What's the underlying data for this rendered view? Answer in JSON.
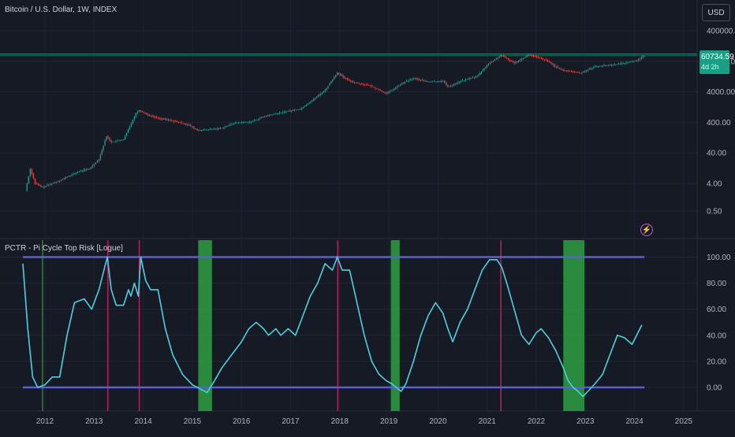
{
  "top_panel": {
    "title": "Bitcoin / U.S. Dollar, 1W, INDEX",
    "currency_button": "USD",
    "last_price": "60734.59",
    "countdown": "4d 2h",
    "y_ticks": [
      "400000.00",
      "40000.00",
      "4000.00",
      "400.00",
      "40.00",
      "4.00",
      "0.50"
    ]
  },
  "bottom_panel": {
    "title": "PCTR - Pi Cycle Top Risk [Logue]",
    "y_ticks": [
      "100.00",
      "80.00",
      "60.00",
      "40.00",
      "20.00",
      "0.00"
    ],
    "alert_icon": "lightning-bolt-icon"
  },
  "x_axis": {
    "labels": [
      "2012",
      "2013",
      "2014",
      "2015",
      "2016",
      "2017",
      "2018",
      "2019",
      "2020",
      "2021",
      "2022",
      "2023",
      "2024",
      "2025"
    ]
  },
  "colors": {
    "background": "#161a25",
    "price_up": "#26a69a",
    "price_down": "#ef5350",
    "risk_line": "#4dd0e1",
    "band_line": "#5a5fd8",
    "top_marker": "#b0205a",
    "bottom_zone": "#2ea043",
    "price_tag": "#16a085"
  },
  "chart_data": [
    {
      "type": "line",
      "title": "Bitcoin / U.S. Dollar, 1W, INDEX",
      "scale": "log",
      "ylim": [
        0.5,
        400000
      ],
      "y_ticks": [
        400000,
        40000,
        4000,
        400,
        40,
        4,
        0.5
      ],
      "x": [
        2011.6,
        2011.7,
        2011.8,
        2011.95,
        2012.3,
        2012.7,
        2012.9,
        2013.1,
        2013.25,
        2013.35,
        2013.6,
        2013.85,
        2013.92,
        2014.1,
        2014.3,
        2014.6,
        2014.9,
        2015.1,
        2015.3,
        2015.6,
        2015.85,
        2016.2,
        2016.5,
        2016.9,
        2017.2,
        2017.5,
        2017.7,
        2017.95,
        2018.1,
        2018.3,
        2018.6,
        2018.95,
        2019.3,
        2019.5,
        2019.8,
        2020.1,
        2020.2,
        2020.5,
        2020.8,
        2021.0,
        2021.28,
        2021.55,
        2021.85,
        2022.2,
        2022.5,
        2022.9,
        2023.2,
        2023.5,
        2023.8,
        2024.05,
        2024.2
      ],
      "values": [
        2.3,
        12,
        4,
        3,
        5,
        10,
        12,
        25,
        140,
        90,
        110,
        800,
        1000,
        700,
        550,
        450,
        340,
        220,
        230,
        260,
        380,
        420,
        650,
        900,
        1100,
        2500,
        4500,
        17000,
        11000,
        8000,
        6500,
        3500,
        8000,
        11000,
        8500,
        9000,
        5800,
        9300,
        13000,
        30000,
        63000,
        35000,
        65000,
        43000,
        21000,
        16500,
        27000,
        30000,
        35000,
        43000,
        60734
      ]
    },
    {
      "type": "line",
      "title": "PCTR - Pi Cycle Top Risk [Logue]",
      "ylim": [
        -10,
        105
      ],
      "y_ticks": [
        100,
        80,
        60,
        40,
        20,
        0
      ],
      "reference_lines": [
        100,
        0
      ],
      "top_markers_x": [
        2011.95,
        2013.28,
        2013.92,
        2017.96,
        2021.28
      ],
      "bottom_zones_x": [
        [
          2015.12,
          2015.4
        ],
        [
          2019.04,
          2019.22
        ],
        [
          2022.55,
          2022.98
        ]
      ],
      "x": [
        2011.55,
        2011.65,
        2011.75,
        2011.85,
        2012.0,
        2012.15,
        2012.3,
        2012.45,
        2012.6,
        2012.8,
        2012.95,
        2013.1,
        2013.2,
        2013.27,
        2013.35,
        2013.45,
        2013.6,
        2013.7,
        2013.75,
        2013.82,
        2013.9,
        2013.95,
        2014.05,
        2014.15,
        2014.3,
        2014.45,
        2014.6,
        2014.8,
        2015.0,
        2015.2,
        2015.3,
        2015.45,
        2015.6,
        2015.8,
        2016.0,
        2016.15,
        2016.3,
        2016.45,
        2016.55,
        2016.7,
        2016.8,
        2016.95,
        2017.1,
        2017.25,
        2017.4,
        2017.55,
        2017.7,
        2017.85,
        2017.95,
        2018.05,
        2018.2,
        2018.35,
        2018.5,
        2018.65,
        2018.8,
        2018.95,
        2019.05,
        2019.15,
        2019.25,
        2019.35,
        2019.5,
        2019.65,
        2019.8,
        2019.95,
        2020.1,
        2020.2,
        2020.3,
        2020.45,
        2020.6,
        2020.75,
        2020.9,
        2021.05,
        2021.2,
        2021.3,
        2021.4,
        2021.55,
        2021.7,
        2021.85,
        2022.0,
        2022.1,
        2022.25,
        2022.4,
        2022.55,
        2022.65,
        2022.75,
        2022.85,
        2022.95,
        2023.05,
        2023.2,
        2023.35,
        2023.5,
        2023.65,
        2023.8,
        2023.95,
        2024.15
      ],
      "values": [
        95,
        45,
        8,
        0,
        2,
        8,
        8,
        40,
        65,
        68,
        60,
        75,
        90,
        100,
        75,
        63,
        63,
        75,
        70,
        80,
        70,
        100,
        82,
        75,
        75,
        45,
        25,
        10,
        2,
        -2,
        -4,
        5,
        15,
        25,
        35,
        45,
        50,
        45,
        40,
        45,
        40,
        45,
        40,
        55,
        70,
        80,
        95,
        90,
        100,
        90,
        90,
        65,
        40,
        20,
        10,
        5,
        3,
        0,
        -3,
        3,
        20,
        40,
        55,
        65,
        57,
        45,
        35,
        50,
        60,
        75,
        90,
        98,
        98,
        92,
        80,
        60,
        40,
        33,
        42,
        45,
        38,
        28,
        15,
        5,
        0,
        -3,
        -7,
        -3,
        3,
        10,
        25,
        40,
        38,
        33,
        48
      ]
    }
  ]
}
